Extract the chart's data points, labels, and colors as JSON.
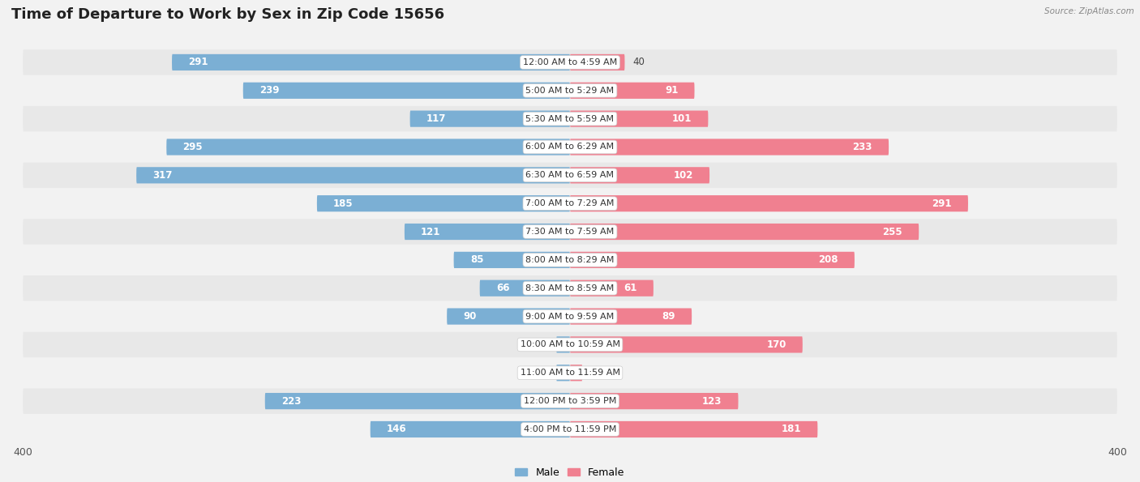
{
  "title": "Time of Departure to Work by Sex in Zip Code 15656",
  "source": "Source: ZipAtlas.com",
  "categories": [
    "12:00 AM to 4:59 AM",
    "5:00 AM to 5:29 AM",
    "5:30 AM to 5:59 AM",
    "6:00 AM to 6:29 AM",
    "6:30 AM to 6:59 AM",
    "7:00 AM to 7:29 AM",
    "7:30 AM to 7:59 AM",
    "8:00 AM to 8:29 AM",
    "8:30 AM to 8:59 AM",
    "9:00 AM to 9:59 AM",
    "10:00 AM to 10:59 AM",
    "11:00 AM to 11:59 AM",
    "12:00 PM to 3:59 PM",
    "4:00 PM to 11:59 PM"
  ],
  "male": [
    291,
    239,
    117,
    295,
    317,
    185,
    121,
    85,
    66,
    90,
    10,
    10,
    223,
    146
  ],
  "female": [
    40,
    91,
    101,
    233,
    102,
    291,
    255,
    208,
    61,
    89,
    170,
    9,
    123,
    181
  ],
  "male_color": "#7bafd4",
  "female_color": "#f08090",
  "axis_max": 400,
  "bar_height": 0.58,
  "bg_color": "#f2f2f2",
  "row_colors": [
    "#e8e8e8",
    "#f2f2f2"
  ],
  "row_bg_color_alt": "#e4e4e4",
  "title_fontsize": 13,
  "label_fontsize": 8.5,
  "axis_label_fontsize": 9,
  "category_fontsize": 8,
  "inside_threshold_male": 50,
  "inside_threshold_female": 50
}
